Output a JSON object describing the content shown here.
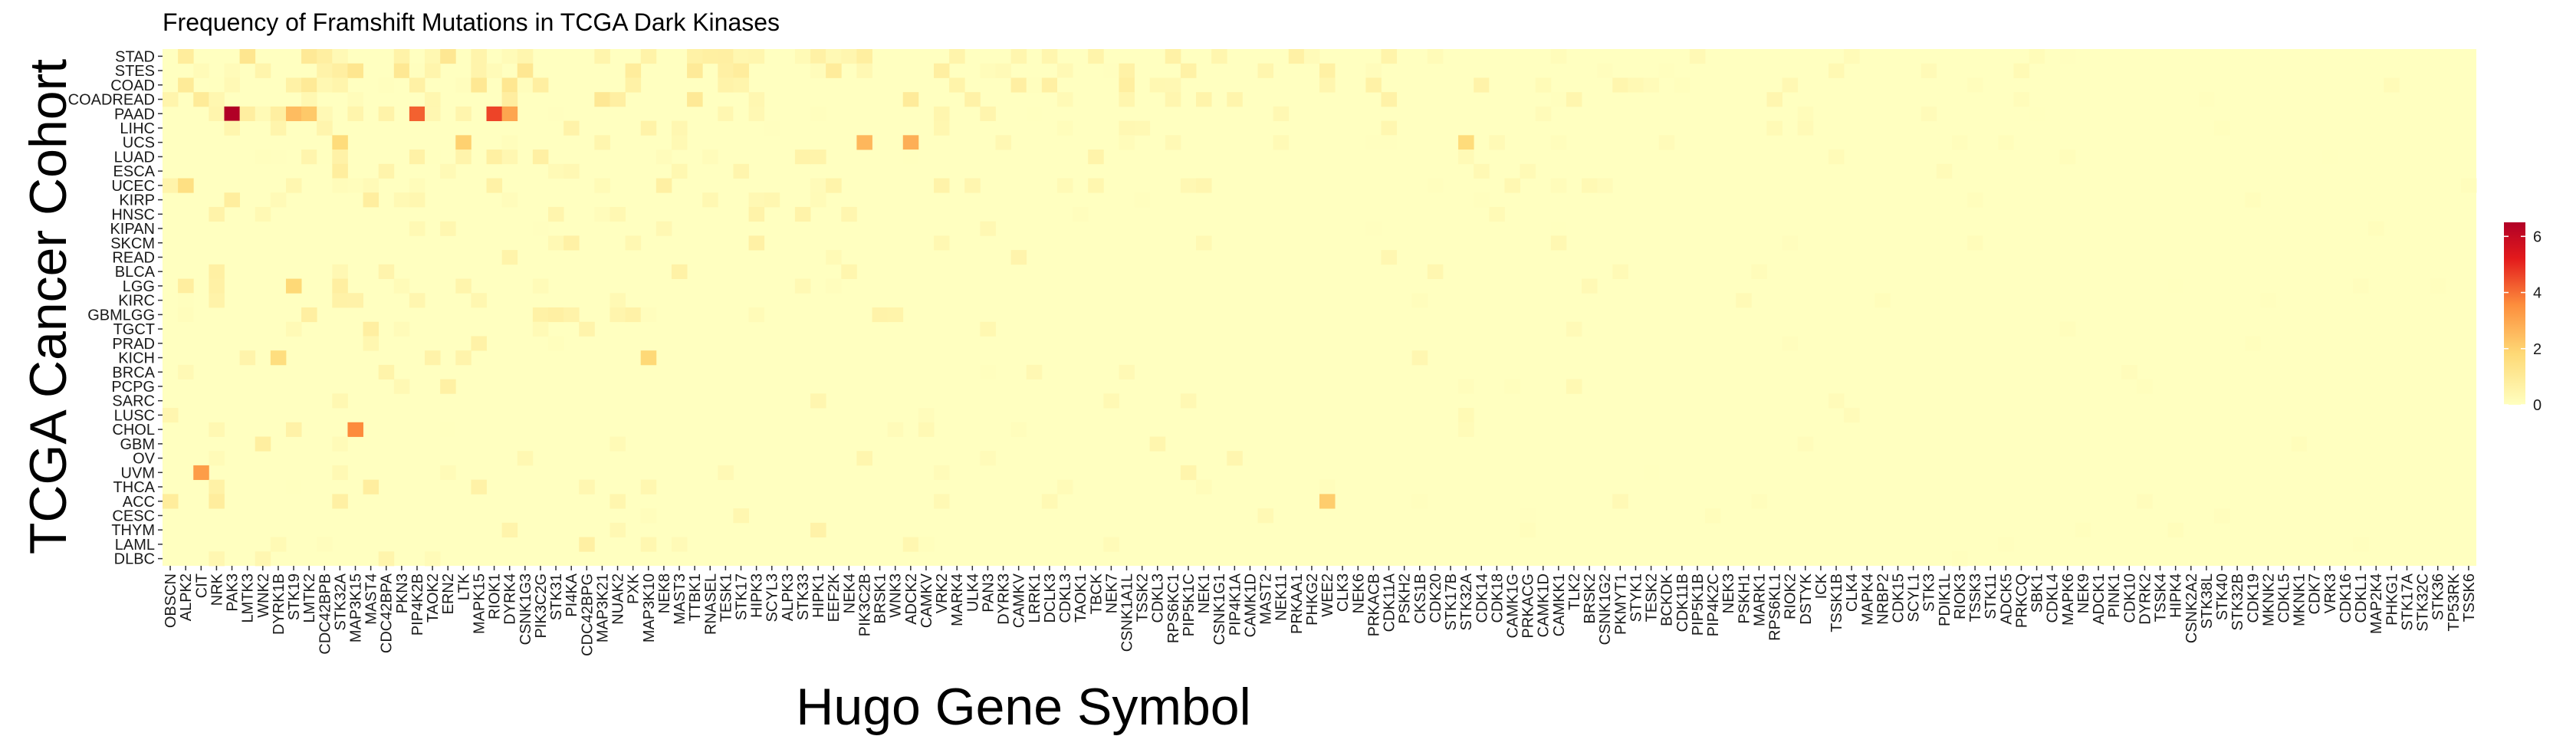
{
  "chart_data": {
    "type": "heatmap",
    "title": "Frequency of Framshift Mutations in TCGA Dark Kinases",
    "xlabel": "Hugo Gene Symbol",
    "ylabel": "TCGA Cancer Cohort",
    "colorbar": {
      "min": 0,
      "max": 6.5,
      "ticks": [
        0,
        2,
        4,
        6
      ],
      "colors": [
        "#ffffc0",
        "#fed976",
        "#fd8d3c",
        "#e31a1c",
        "#b10026"
      ]
    },
    "legend_position": "right",
    "grid": false,
    "y_categories": [
      "STAD",
      "STES",
      "COAD",
      "COADREAD",
      "PAAD",
      "LIHC",
      "UCS",
      "LUAD",
      "ESCA",
      "UCEC",
      "KIRP",
      "HNSC",
      "KIPAN",
      "SKCM",
      "READ",
      "BLCA",
      "LGG",
      "KIRC",
      "GBMLGG",
      "TGCT",
      "PRAD",
      "KICH",
      "BRCA",
      "PCPG",
      "SARC",
      "LUSC",
      "CHOL",
      "GBM",
      "OV",
      "UVM",
      "THCA",
      "ACC",
      "CESC",
      "THYM",
      "LAML",
      "DLBC"
    ],
    "x_labels_shown": [
      "OBSCN",
      "ALPK2",
      "CIT",
      "NRK",
      "PAK3",
      "LMTK3",
      "WNK2",
      "DYRK1B",
      "STK19",
      "LMTK2",
      "CDC42BPB",
      "STK32A",
      "MAP3K15",
      "MAST4",
      "CDC42BPA",
      "PKN3",
      "PIP4K2B",
      "TAOK2",
      "ERN2",
      "LTK",
      "MAPK15",
      "RIOK1",
      "DYRK4",
      "CSNK1G3",
      "PIK3C2G",
      "STK31",
      "PI4KA",
      "CDC42BPG",
      "MAP3K21",
      "NUAK2",
      "PXK",
      "MAP3K10",
      "NEK8",
      "MAST3",
      "TTBK1",
      "RNASEL",
      "TESK1",
      "STK17",
      "HIPK3",
      "SCYL3",
      "ALPK3",
      "STK33",
      "HIPK1",
      "EEF2K",
      "NEK4",
      "PIK3C2B",
      "BRSK1",
      "WNK3",
      "ADCK2",
      "CAMKV",
      "VRK2",
      "MARK4",
      "ULK4",
      "PAN3",
      "DYRK3",
      "CAMKV",
      "LRRK1",
      "DCLK3",
      "CDKL3",
      "TAOK1",
      "TBCK",
      "NEK7",
      "CSNK1A1L",
      "TSSK2",
      "CDKL3",
      "RPS6KC1",
      "PIP5K1C",
      "NEK1",
      "CSNK1G1",
      "PIP4K1A",
      "CAMK1D",
      "MAST2",
      "NEK11",
      "PRKAA1",
      "PHKG2",
      "WEE2",
      "CLK3",
      "NEK6",
      "PRKACB",
      "CDK11A",
      "PSKH2",
      "CKS1B",
      "CDK20",
      "STK17B",
      "STK32A",
      "CDK14",
      "CDK18",
      "CAMK1G",
      "PRKACG",
      "CAMK1D",
      "CAMKK1",
      "TLK2",
      "BRSK2",
      "CSNK1G2",
      "PKMYT1",
      "STYK1",
      "TESK2",
      "BCKDK",
      "CDK11B",
      "PIP5K1B",
      "PIP4K2C",
      "NEK3",
      "PSKH1",
      "MARK1",
      "RPS6KL1",
      "RIOK2",
      "DSTYK",
      "ICK",
      "TSSK1B",
      "CLK4",
      "MAPK4",
      "NRBP2",
      "CDK15",
      "SCYL1",
      "STK3",
      "PDIK1L",
      "RIOK3",
      "TSSK3",
      "STK11",
      "ADCK5",
      "PRKCQ",
      "SBK1",
      "CDKL4",
      "MAPK6",
      "NEK9",
      "ADCK1",
      "PINK1",
      "CDK10",
      "DYRK2",
      "TSSK4",
      "HIPK4",
      "CSNK2A2",
      "STK38L",
      "STK40",
      "STK32B",
      "CDK19",
      "MKNK2",
      "CDKL5",
      "MKNK1",
      "CDK7",
      "VRK3",
      "CDK16",
      "CDKL1",
      "MAP2K4",
      "PHKG1",
      "STK17A",
      "STK32C",
      "STK36",
      "TP53RK",
      "TSSK6"
    ],
    "hot_cells": [
      {
        "x": "PAK3",
        "y": "PAAD",
        "value": 6.5
      },
      {
        "x": "RIOK1",
        "y": "PAAD",
        "value": 4.6
      },
      {
        "x": "PIP4K2B",
        "y": "PAAD",
        "value": 4.2
      },
      {
        "x": "DYRK4",
        "y": "PAAD",
        "value": 3.0
      },
      {
        "x": "STK19",
        "y": "PAAD",
        "value": 2.5
      },
      {
        "x": "LMTK2",
        "y": "PAAD",
        "value": 2.2
      },
      {
        "x": "MAP3K15",
        "y": "CHOL",
        "value": 3.6
      },
      {
        "x": "CIT",
        "y": "UVM",
        "value": 3.2
      },
      {
        "x": "ADCK2",
        "y": "UCS",
        "value": 2.8
      },
      {
        "x": "PIK3C2B",
        "y": "UCS",
        "value": 2.6
      },
      {
        "x": "LTK",
        "y": "UCS",
        "value": 2.0
      },
      {
        "x": "STK32A",
        "y": "UCS",
        "value": 1.7
      },
      {
        "x": "WEE2",
        "y": "ACC",
        "value": 2.1
      },
      {
        "x": "STK19",
        "y": "LGG",
        "value": 1.8
      },
      {
        "x": "MAP3K10",
        "y": "KICH",
        "value": 1.8
      },
      {
        "x": "DYRK1B",
        "y": "KICH",
        "value": 1.6
      },
      {
        "x": "ALPK2",
        "y": "UCEC",
        "value": 1.5
      }
    ]
  }
}
